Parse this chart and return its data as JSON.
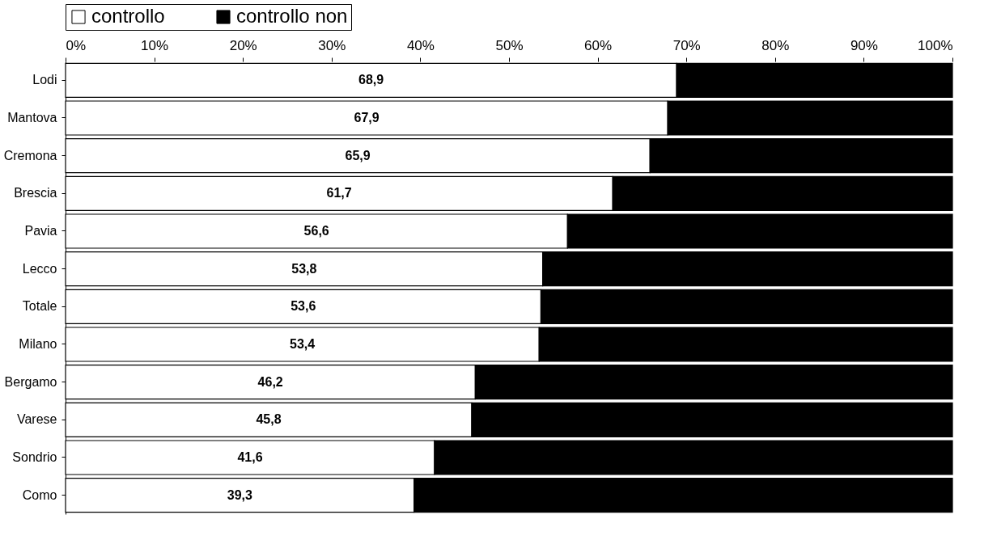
{
  "chart_data": {
    "type": "bar",
    "orientation": "horizontal",
    "stacked": true,
    "categories": [
      "Lodi",
      "Mantova",
      "Cremona",
      "Brescia",
      "Pavia",
      "Lecco",
      "Totale",
      "Milano",
      "Bergamo",
      "Varese",
      "Sondrio",
      "Como"
    ],
    "series": [
      {
        "name": "controllo",
        "color": "#ffffff",
        "values": [
          68.9,
          67.9,
          65.9,
          61.7,
          56.6,
          53.8,
          53.6,
          53.4,
          46.2,
          45.8,
          41.6,
          39.3
        ],
        "value_labels": [
          "68,9",
          "67,9",
          "65,9",
          "61,7",
          "56,6",
          "53,8",
          "53,6",
          "53,4",
          "46,2",
          "45,8",
          "41,6",
          "39,3"
        ]
      },
      {
        "name": "controllo non",
        "color": "#000000",
        "values": [
          31.1,
          32.1,
          34.1,
          38.3,
          43.4,
          46.2,
          46.4,
          46.6,
          53.8,
          54.2,
          58.4,
          60.7
        ]
      }
    ],
    "xlim": [
      0,
      100
    ],
    "xticks": [
      {
        "value": 0,
        "label": "0%"
      },
      {
        "value": 10,
        "label": "10%"
      },
      {
        "value": 20,
        "label": "20%"
      },
      {
        "value": 30,
        "label": "30%"
      },
      {
        "value": 40,
        "label": "40%"
      },
      {
        "value": 50,
        "label": "50%"
      },
      {
        "value": 60,
        "label": "60%"
      },
      {
        "value": 70,
        "label": "70%"
      },
      {
        "value": 80,
        "label": "80%"
      },
      {
        "value": 90,
        "label": "90%"
      },
      {
        "value": 100,
        "label": "100%"
      }
    ],
    "legend": "top",
    "grid": false
  }
}
